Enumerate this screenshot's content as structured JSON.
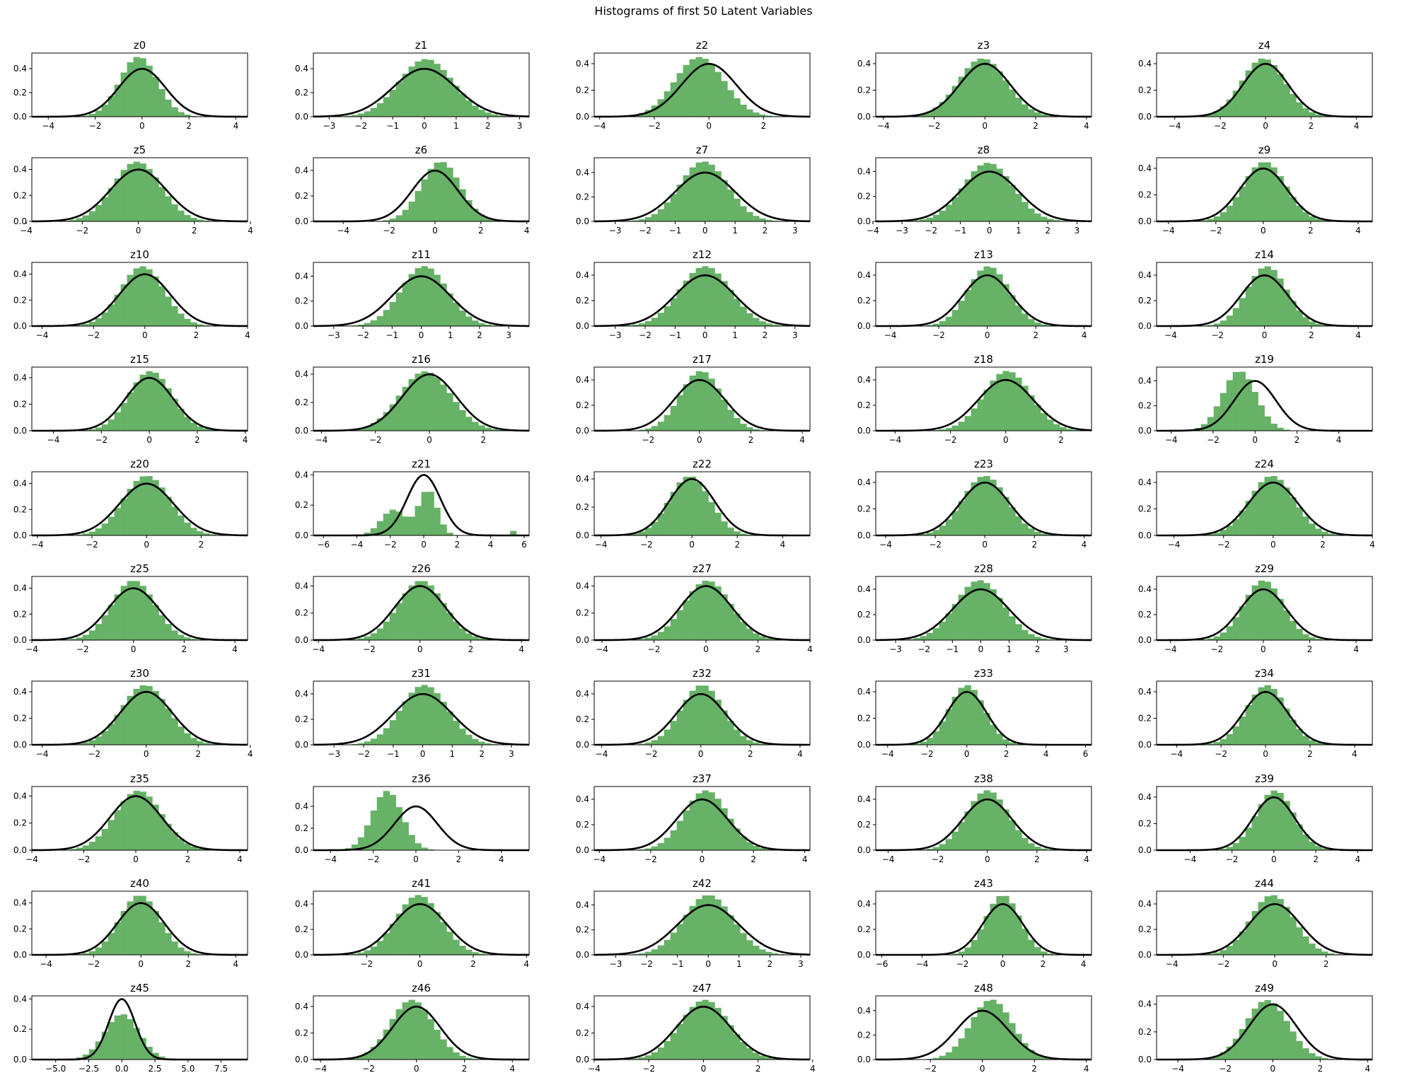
{
  "figure": {
    "title": "Histograms of first 50 Latent Variables"
  },
  "colors": {
    "bar_fill": "#66b266",
    "curve": "#000000",
    "axes": "#000000",
    "background": "#ffffff"
  },
  "chart_data": [
    {
      "type": "bar",
      "title": "z0",
      "xlim": [
        -4.7,
        4.5
      ],
      "ylim": [
        0,
        0.53
      ],
      "xticks": [
        -4,
        -2,
        0,
        2,
        4
      ],
      "yticks": [
        0.0,
        0.2,
        0.4
      ],
      "mean": -0.15,
      "sd": 0.8,
      "peak": 0.5
    },
    {
      "type": "bar",
      "title": "z1",
      "xlim": [
        -3.5,
        3.3
      ],
      "ylim": [
        0,
        0.53
      ],
      "xticks": [
        -3,
        -2,
        -1,
        0,
        1,
        2,
        3
      ],
      "yticks": [
        0.0,
        0.2,
        0.4
      ],
      "mean": 0.05,
      "sd": 0.85,
      "peak": 0.48
    },
    {
      "type": "bar",
      "title": "z2",
      "xlim": [
        -4.2,
        3.7
      ],
      "ylim": [
        0,
        0.48
      ],
      "xticks": [
        -4,
        -2,
        0,
        2
      ],
      "yticks": [
        0.0,
        0.2,
        0.4
      ],
      "mean": -0.35,
      "sd": 0.9,
      "peak": 0.45
    },
    {
      "type": "bar",
      "title": "z3",
      "xlim": [
        -4.3,
        4.2
      ],
      "ylim": [
        0,
        0.48
      ],
      "xticks": [
        -4,
        -2,
        0,
        2,
        4
      ],
      "yticks": [
        0.0,
        0.2,
        0.4
      ],
      "mean": -0.1,
      "sd": 0.95,
      "peak": 0.44
    },
    {
      "type": "bar",
      "title": "z4",
      "xlim": [
        -4.8,
        4.7
      ],
      "ylim": [
        0,
        0.48
      ],
      "xticks": [
        -4,
        -2,
        0,
        2,
        4
      ],
      "yticks": [
        0.0,
        0.2,
        0.4
      ],
      "mean": -0.1,
      "sd": 0.95,
      "peak": 0.44
    },
    {
      "type": "bar",
      "title": "z5",
      "xlim": [
        -3.8,
        3.9
      ],
      "ylim": [
        0,
        0.49
      ],
      "xticks": [
        -4,
        -2,
        0,
        2,
        4
      ],
      "yticks": [
        0.0,
        0.2,
        0.4
      ],
      "mean": -0.05,
      "sd": 0.85,
      "peak": 0.46
    },
    {
      "type": "bar",
      "title": "z6",
      "xlim": [
        -5.3,
        4.1
      ],
      "ylim": [
        0,
        0.5
      ],
      "xticks": [
        -4,
        -2,
        0,
        2,
        4
      ],
      "yticks": [
        0.0,
        0.2,
        0.4
      ],
      "mean": 0.25,
      "sd": 0.85,
      "peak": 0.47
    },
    {
      "type": "bar",
      "title": "z7",
      "xlim": [
        -3.7,
        3.5
      ],
      "ylim": [
        0,
        0.52
      ],
      "xticks": [
        -3,
        -2,
        -1,
        0,
        1,
        2,
        3
      ],
      "yticks": [
        0.0,
        0.2,
        0.4
      ],
      "mean": -0.05,
      "sd": 0.8,
      "peak": 0.49
    },
    {
      "type": "bar",
      "title": "z8",
      "xlim": [
        -3.9,
        3.5
      ],
      "ylim": [
        0,
        0.51
      ],
      "xticks": [
        -4,
        -3,
        -2,
        -1,
        0,
        1,
        2,
        3
      ],
      "yticks": [
        0.0,
        0.2,
        0.4
      ],
      "mean": -0.05,
      "sd": 0.85,
      "peak": 0.47
    },
    {
      "type": "bar",
      "title": "z9",
      "xlim": [
        -4.5,
        4.6
      ],
      "ylim": [
        0,
        0.48
      ],
      "xticks": [
        -4,
        -2,
        0,
        2,
        4
      ],
      "yticks": [
        0.0,
        0.2,
        0.4
      ],
      "mean": 0.05,
      "sd": 0.9,
      "peak": 0.45
    },
    {
      "type": "bar",
      "title": "z10",
      "xlim": [
        -4.4,
        4.0
      ],
      "ylim": [
        0,
        0.49
      ],
      "xticks": [
        -4,
        -2,
        0,
        2,
        4
      ],
      "yticks": [
        0.0,
        0.2,
        0.4
      ],
      "mean": -0.1,
      "sd": 0.85,
      "peak": 0.46
    },
    {
      "type": "bar",
      "title": "z11",
      "xlim": [
        -3.7,
        3.7
      ],
      "ylim": [
        0,
        0.51
      ],
      "xticks": [
        -3,
        -2,
        -1,
        0,
        1,
        2,
        3
      ],
      "yticks": [
        0.0,
        0.2,
        0.4
      ],
      "mean": 0.1,
      "sd": 0.8,
      "peak": 0.48
    },
    {
      "type": "bar",
      "title": "z12",
      "xlim": [
        -3.7,
        3.5
      ],
      "ylim": [
        0,
        0.5
      ],
      "xticks": [
        -3,
        -2,
        -1,
        0,
        1,
        2,
        3
      ],
      "yticks": [
        0.0,
        0.2,
        0.4
      ],
      "mean": 0.0,
      "sd": 0.85,
      "peak": 0.47
    },
    {
      "type": "bar",
      "title": "z13",
      "xlim": [
        -4.6,
        4.3
      ],
      "ylim": [
        0,
        0.5
      ],
      "xticks": [
        -4,
        -2,
        0,
        2,
        4
      ],
      "yticks": [
        0.0,
        0.2,
        0.4
      ],
      "mean": 0.05,
      "sd": 0.85,
      "peak": 0.47
    },
    {
      "type": "bar",
      "title": "z14",
      "xlim": [
        -4.6,
        4.6
      ],
      "ylim": [
        0,
        0.5
      ],
      "xticks": [
        -4,
        -2,
        0,
        2,
        4
      ],
      "yticks": [
        0.0,
        0.2,
        0.4
      ],
      "mean": 0.1,
      "sd": 0.85,
      "peak": 0.47
    },
    {
      "type": "bar",
      "title": "z15",
      "xlim": [
        -4.9,
        4.1
      ],
      "ylim": [
        0,
        0.48
      ],
      "xticks": [
        -4,
        -2,
        0,
        2,
        4
      ],
      "yticks": [
        0.0,
        0.2,
        0.4
      ],
      "mean": 0.05,
      "sd": 0.9,
      "peak": 0.45
    },
    {
      "type": "bar",
      "title": "z16",
      "xlim": [
        -4.3,
        3.7
      ],
      "ylim": [
        0,
        0.45
      ],
      "xticks": [
        -4,
        -2,
        0,
        2
      ],
      "yticks": [
        0.0,
        0.2,
        0.4
      ],
      "mean": -0.15,
      "sd": 0.95,
      "peak": 0.42
    },
    {
      "type": "bar",
      "title": "z17",
      "xlim": [
        -4.1,
        4.3
      ],
      "ylim": [
        0,
        0.5
      ],
      "xticks": [
        -2,
        0,
        2,
        4
      ],
      "yticks": [
        0.0,
        0.2,
        0.4
      ],
      "mean": 0.05,
      "sd": 0.8,
      "peak": 0.47
    },
    {
      "type": "bar",
      "title": "z18",
      "xlim": [
        -4.7,
        3.1
      ],
      "ylim": [
        0,
        0.5
      ],
      "xticks": [
        -4,
        -2,
        0,
        2
      ],
      "yticks": [
        0.0,
        0.2,
        0.4
      ],
      "mean": 0.05,
      "sd": 0.85,
      "peak": 0.47
    },
    {
      "type": "bar",
      "title": "z19",
      "xlim": [
        -4.7,
        5.6
      ],
      "ylim": [
        0,
        0.51
      ],
      "xticks": [
        -4,
        -2,
        0,
        2,
        4
      ],
      "yticks": [
        0.0,
        0.2,
        0.4
      ],
      "mean": -0.75,
      "sd": 0.8,
      "peak": 0.48
    },
    {
      "type": "bar",
      "title": "z20",
      "xlim": [
        -4.2,
        3.7
      ],
      "ylim": [
        0,
        0.49
      ],
      "xticks": [
        -4,
        -2,
        0,
        2
      ],
      "yticks": [
        0.0,
        0.2,
        0.4
      ],
      "mean": 0.0,
      "sd": 0.85,
      "peak": 0.46
    },
    {
      "type": "bar",
      "title": "z21",
      "xlim": [
        -6.6,
        6.3
      ],
      "ylim": [
        0,
        0.42
      ],
      "xticks": [
        -6,
        -4,
        -2,
        0,
        2,
        4,
        6
      ],
      "yticks": [
        0.0,
        0.2,
        0.4
      ],
      "mean": 0.0,
      "sd": 1.0,
      "peak": 0.35,
      "bimodal": true
    },
    {
      "type": "bar",
      "title": "z22",
      "xlim": [
        -4.3,
        5.2
      ],
      "ylim": [
        0,
        0.45
      ],
      "xticks": [
        -4,
        -2,
        0,
        2,
        4
      ],
      "yticks": [
        0.0,
        0.2,
        0.4
      ],
      "mean": -0.1,
      "sd": 0.9,
      "peak": 0.42
    },
    {
      "type": "bar",
      "title": "z23",
      "xlim": [
        -4.4,
        4.3
      ],
      "ylim": [
        0,
        0.48
      ],
      "xticks": [
        -4,
        -2,
        0,
        2,
        4
      ],
      "yticks": [
        0.0,
        0.2,
        0.4
      ],
      "mean": 0.0,
      "sd": 0.9,
      "peak": 0.45
    },
    {
      "type": "bar",
      "title": "z24",
      "xlim": [
        -4.7,
        4.0
      ],
      "ylim": [
        0,
        0.48
      ],
      "xticks": [
        -4,
        -2,
        0,
        2,
        4
      ],
      "yticks": [
        0.0,
        0.2,
        0.4
      ],
      "mean": -0.05,
      "sd": 0.9,
      "peak": 0.45
    },
    {
      "type": "bar",
      "title": "z25",
      "xlim": [
        -4.0,
        4.5
      ],
      "ylim": [
        0,
        0.49
      ],
      "xticks": [
        -4,
        -2,
        0,
        2,
        4
      ],
      "yticks": [
        0.0,
        0.2,
        0.4
      ],
      "mean": 0.0,
      "sd": 0.85,
      "peak": 0.46
    },
    {
      "type": "bar",
      "title": "z26",
      "xlim": [
        -4.2,
        4.3
      ],
      "ylim": [
        0,
        0.47
      ],
      "xticks": [
        -4,
        -2,
        0,
        2,
        4
      ],
      "yticks": [
        0.0,
        0.2,
        0.4
      ],
      "mean": 0.05,
      "sd": 0.9,
      "peak": 0.44
    },
    {
      "type": "bar",
      "title": "z27",
      "xlim": [
        -4.3,
        4.0
      ],
      "ylim": [
        0,
        0.47
      ],
      "xticks": [
        -4,
        -2,
        0,
        2,
        4
      ],
      "yticks": [
        0.0,
        0.2,
        0.4
      ],
      "mean": 0.05,
      "sd": 0.9,
      "peak": 0.44
    },
    {
      "type": "bar",
      "title": "z28",
      "xlim": [
        -3.7,
        3.9
      ],
      "ylim": [
        0,
        0.5
      ],
      "xticks": [
        -3,
        -2,
        -1,
        0,
        1,
        2,
        3
      ],
      "yticks": [
        0.0,
        0.2,
        0.4
      ],
      "mean": -0.05,
      "sd": 0.85,
      "peak": 0.47
    },
    {
      "type": "bar",
      "title": "z29",
      "xlim": [
        -4.6,
        4.7
      ],
      "ylim": [
        0,
        0.5
      ],
      "xticks": [
        -4,
        -2,
        0,
        2,
        4
      ],
      "yticks": [
        0.0,
        0.2,
        0.4
      ],
      "mean": 0.0,
      "sd": 0.85,
      "peak": 0.47
    },
    {
      "type": "bar",
      "title": "z30",
      "xlim": [
        -4.4,
        3.9
      ],
      "ylim": [
        0,
        0.48
      ],
      "xticks": [
        -4,
        -2,
        0,
        2,
        4
      ],
      "yticks": [
        0.0,
        0.2,
        0.4
      ],
      "mean": -0.05,
      "sd": 0.9,
      "peak": 0.45
    },
    {
      "type": "bar",
      "title": "z31",
      "xlim": [
        -3.7,
        3.6
      ],
      "ylim": [
        0,
        0.5
      ],
      "xticks": [
        -3,
        -2,
        -1,
        0,
        1,
        2,
        3
      ],
      "yticks": [
        0.0,
        0.2,
        0.4
      ],
      "mean": 0.05,
      "sd": 0.8,
      "peak": 0.47
    },
    {
      "type": "bar",
      "title": "z32",
      "xlim": [
        -4.3,
        4.4
      ],
      "ylim": [
        0,
        0.5
      ],
      "xticks": [
        -4,
        -2,
        0,
        2,
        4
      ],
      "yticks": [
        0.0,
        0.2,
        0.4
      ],
      "mean": 0.05,
      "sd": 0.85,
      "peak": 0.47
    },
    {
      "type": "bar",
      "title": "z33",
      "xlim": [
        -4.6,
        6.3
      ],
      "ylim": [
        0,
        0.48
      ],
      "xticks": [
        -4,
        -2,
        0,
        2,
        4,
        6
      ],
      "yticks": [
        0.0,
        0.2,
        0.4
      ],
      "mean": 0.0,
      "sd": 0.9,
      "peak": 0.45
    },
    {
      "type": "bar",
      "title": "z34",
      "xlim": [
        -4.9,
        4.8
      ],
      "ylim": [
        0,
        0.48
      ],
      "xticks": [
        -4,
        -2,
        0,
        2,
        4
      ],
      "yticks": [
        0.0,
        0.2,
        0.4
      ],
      "mean": 0.05,
      "sd": 0.9,
      "peak": 0.45
    },
    {
      "type": "bar",
      "title": "z35",
      "xlim": [
        -4.0,
        4.3
      ],
      "ylim": [
        0,
        0.47
      ],
      "xticks": [
        -4,
        -2,
        0,
        2,
        4
      ],
      "yticks": [
        0.0,
        0.2,
        0.4
      ],
      "mean": 0.1,
      "sd": 0.9,
      "peak": 0.44
    },
    {
      "type": "bar",
      "title": "z36",
      "xlim": [
        -4.8,
        5.3
      ],
      "ylim": [
        0,
        0.58
      ],
      "xticks": [
        -4,
        -2,
        0,
        2,
        4
      ],
      "yticks": [
        0.0,
        0.2,
        0.4
      ],
      "mean": -1.35,
      "sd": 0.7,
      "peak": 0.54
    },
    {
      "type": "bar",
      "title": "z37",
      "xlim": [
        -4.2,
        4.2
      ],
      "ylim": [
        0,
        0.5
      ],
      "xticks": [
        -4,
        -2,
        0,
        2,
        4
      ],
      "yticks": [
        0.0,
        0.2,
        0.4
      ],
      "mean": 0.15,
      "sd": 0.85,
      "peak": 0.47
    },
    {
      "type": "bar",
      "title": "z38",
      "xlim": [
        -4.5,
        4.2
      ],
      "ylim": [
        0,
        0.5
      ],
      "xticks": [
        -4,
        -2,
        0,
        2,
        4
      ],
      "yticks": [
        0.0,
        0.2,
        0.4
      ],
      "mean": 0.0,
      "sd": 0.85,
      "peak": 0.47
    },
    {
      "type": "bar",
      "title": "z39",
      "xlim": [
        -5.6,
        4.7
      ],
      "ylim": [
        0,
        0.48
      ],
      "xticks": [
        -4,
        -2,
        0,
        2,
        4
      ],
      "yticks": [
        0.0,
        0.2,
        0.4
      ],
      "mean": 0.05,
      "sd": 0.9,
      "peak": 0.45
    },
    {
      "type": "bar",
      "title": "z40",
      "xlim": [
        -4.6,
        4.5
      ],
      "ylim": [
        0,
        0.49
      ],
      "xticks": [
        -4,
        -2,
        0,
        2,
        4
      ],
      "yticks": [
        0.0,
        0.2,
        0.4
      ],
      "mean": -0.05,
      "sd": 0.85,
      "peak": 0.46
    },
    {
      "type": "bar",
      "title": "z41",
      "xlim": [
        -4.0,
        4.1
      ],
      "ylim": [
        0,
        0.5
      ],
      "xticks": [
        -2,
        0,
        2,
        4
      ],
      "yticks": [
        0.0,
        0.2,
        0.4
      ],
      "mean": -0.05,
      "sd": 0.85,
      "peak": 0.47
    },
    {
      "type": "bar",
      "title": "z42",
      "xlim": [
        -3.7,
        3.3
      ],
      "ylim": [
        0,
        0.51
      ],
      "xticks": [
        -3,
        -2,
        -1,
        0,
        1,
        2,
        3
      ],
      "yticks": [
        0.0,
        0.2,
        0.4
      ],
      "mean": 0.0,
      "sd": 0.8,
      "peak": 0.48
    },
    {
      "type": "bar",
      "title": "z43",
      "xlim": [
        -6.3,
        4.4
      ],
      "ylim": [
        0,
        0.5
      ],
      "xticks": [
        -6,
        -4,
        -2,
        0,
        2,
        4
      ],
      "yticks": [
        0.0,
        0.2,
        0.4
      ],
      "mean": 0.0,
      "sd": 0.85,
      "peak": 0.47
    },
    {
      "type": "bar",
      "title": "z44",
      "xlim": [
        -4.6,
        3.8
      ],
      "ylim": [
        0,
        0.5
      ],
      "xticks": [
        -4,
        -2,
        0,
        2
      ],
      "yticks": [
        0.0,
        0.2,
        0.4
      ],
      "mean": -0.1,
      "sd": 0.85,
      "peak": 0.47
    },
    {
      "type": "bar",
      "title": "z45",
      "xlim": [
        -6.8,
        9.5
      ],
      "ylim": [
        0,
        0.42
      ],
      "xticks": [
        -5.0,
        -2.5,
        0.0,
        2.5,
        5.0,
        7.5
      ],
      "yticks": [
        0.0,
        0.2,
        0.4
      ],
      "mean": 0.0,
      "sd": 1.3,
      "peak": 0.3
    },
    {
      "type": "bar",
      "title": "z46",
      "xlim": [
        -4.3,
        4.7
      ],
      "ylim": [
        0,
        0.48
      ],
      "xticks": [
        -4,
        -2,
        0,
        2,
        4
      ],
      "yticks": [
        0.0,
        0.2,
        0.4
      ],
      "mean": -0.2,
      "sd": 0.9,
      "peak": 0.45
    },
    {
      "type": "bar",
      "title": "z47",
      "xlim": [
        -4.0,
        3.9
      ],
      "ylim": [
        0,
        0.48
      ],
      "xticks": [
        -4,
        -2,
        0,
        2,
        4
      ],
      "yticks": [
        0.0,
        0.2,
        0.4
      ],
      "mean": 0.05,
      "sd": 0.9,
      "peak": 0.45
    },
    {
      "type": "bar",
      "title": "z48",
      "xlim": [
        -4.1,
        4.2
      ],
      "ylim": [
        0,
        0.52
      ],
      "xticks": [
        -2,
        0,
        2,
        4
      ],
      "yticks": [
        0.0,
        0.2,
        0.4
      ],
      "mean": 0.35,
      "sd": 0.8,
      "peak": 0.49
    },
    {
      "type": "bar",
      "title": "z49",
      "xlim": [
        -4.9,
        4.2
      ],
      "ylim": [
        0,
        0.46
      ],
      "xticks": [
        -4,
        -2,
        0,
        2,
        4
      ],
      "yticks": [
        0.0,
        0.2,
        0.4
      ],
      "mean": -0.25,
      "sd": 0.9,
      "peak": 0.43
    }
  ]
}
